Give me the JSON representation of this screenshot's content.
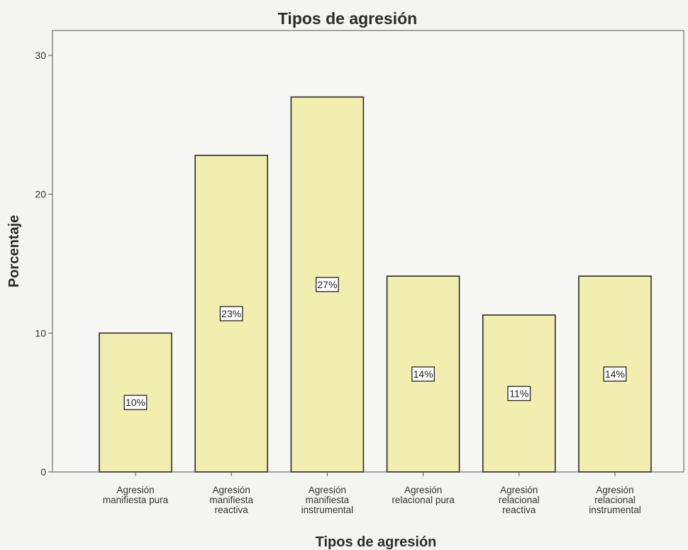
{
  "chart_data": {
    "type": "bar",
    "title": "Tipos de agresión",
    "xlabel": "Tipos de agresión",
    "ylabel": "Porcentaje",
    "categories": [
      [
        "Agresión",
        "manifiesta pura"
      ],
      [
        "Agresión",
        "manifiesta",
        "reactiva"
      ],
      [
        "Agresión",
        "manifiesta",
        "instrumental"
      ],
      [
        "Agresión",
        "relacional pura"
      ],
      [
        "Agresión",
        "relacional",
        "reactiva"
      ],
      [
        "Agresión",
        "relacional",
        "instrumental"
      ]
    ],
    "values": [
      10,
      22.8,
      27,
      14.1,
      11.3,
      14.1
    ],
    "data_labels": [
      "10%",
      "23%",
      "27%",
      "14%",
      "11%",
      "14%"
    ],
    "ylim": [
      0,
      30
    ],
    "yticks": [
      0,
      10,
      20,
      30
    ],
    "bar_color": "#f2eeb0",
    "bar_stroke": "#2a2a2a",
    "grid": false
  }
}
